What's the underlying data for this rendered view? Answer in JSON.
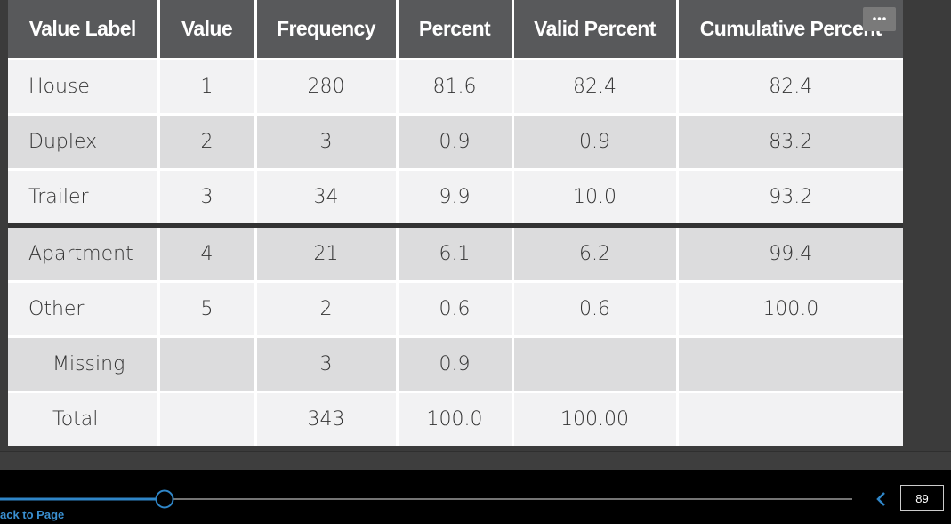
{
  "table": {
    "header": [
      "Value Label",
      "Value",
      "Frequency",
      "Percent",
      "Valid Percent",
      "Cumulative Percent"
    ],
    "rows": [
      [
        "House",
        "1",
        "280",
        "81.6",
        "82.4",
        "82.4"
      ],
      [
        "Duplex",
        "2",
        "3",
        "0.9",
        "0.9",
        "83.2"
      ],
      [
        "Trailer",
        "3",
        "34",
        "9.9",
        "10.0",
        "93.2"
      ],
      [
        "Apartment",
        "4",
        "21",
        "6.1",
        "6.2",
        "99.4"
      ],
      [
        "Other",
        "5",
        "2",
        "0.6",
        "0.6",
        "100.0"
      ],
      [
        "Missing",
        null,
        "3",
        "0.9",
        null,
        null
      ],
      [
        "Total",
        null,
        "343",
        "100.0",
        "100.00",
        null
      ]
    ]
  },
  "toolbar": {
    "back_link": "ack to Page",
    "page_number": "89"
  }
}
